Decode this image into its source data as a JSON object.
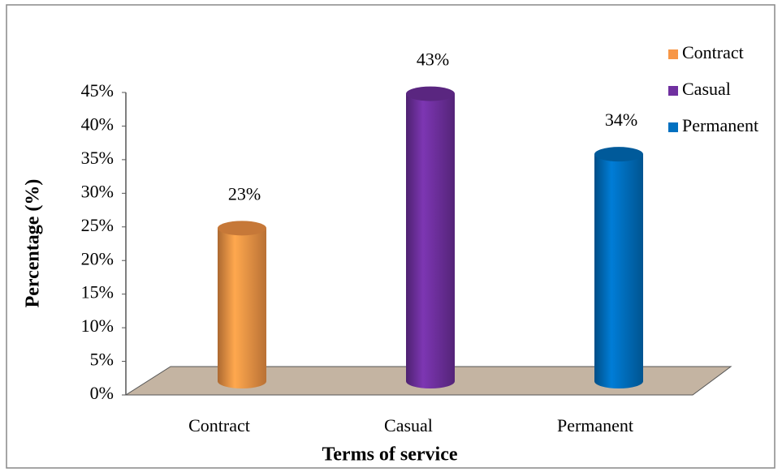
{
  "chart_data": {
    "type": "bar",
    "x_label": "Terms of service",
    "y_label": "Percentage (%)",
    "categories": [
      "Contract",
      "Casual",
      "Permanent"
    ],
    "values": [
      23,
      43,
      34
    ],
    "value_labels": [
      "23%",
      "43%",
      "34%"
    ],
    "colors": [
      "#f79646",
      "#7030a0",
      "#0070c0"
    ],
    "ylim": [
      0,
      45
    ],
    "yticks": [
      {
        "value": 0,
        "label": "0%"
      },
      {
        "value": 5,
        "label": "5%"
      },
      {
        "value": 10,
        "label": "10%"
      },
      {
        "value": 15,
        "label": "15%"
      },
      {
        "value": 20,
        "label": "20%"
      },
      {
        "value": 25,
        "label": "25%"
      },
      {
        "value": 30,
        "label": "30%"
      },
      {
        "value": 35,
        "label": "35%"
      },
      {
        "value": 40,
        "label": "40%"
      },
      {
        "value": 45,
        "label": "45%"
      }
    ],
    "legend": "top-right"
  }
}
